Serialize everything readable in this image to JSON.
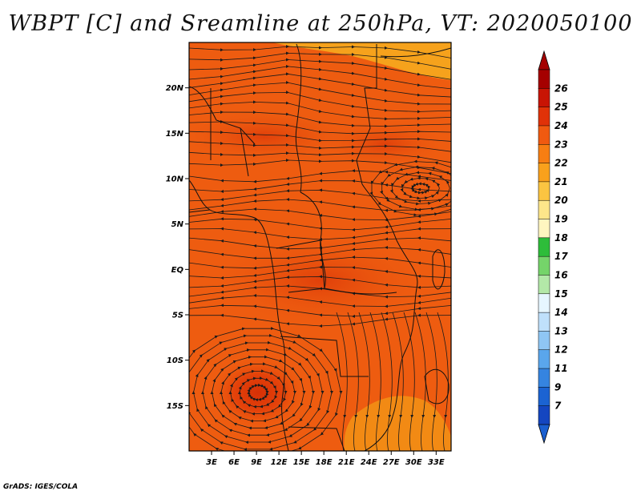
{
  "title": "WBPT [C] and Sreamline at 250hPa, VT: 2020050100",
  "credit": "GrADS: IGES/COLA",
  "map": {
    "lat_range": [
      -20,
      25
    ],
    "lon_range": [
      0,
      35
    ],
    "lat_ticks": [
      {
        "label": "20N",
        "lat": 20
      },
      {
        "label": "15N",
        "lat": 15
      },
      {
        "label": "10N",
        "lat": 10
      },
      {
        "label": "5N",
        "lat": 5
      },
      {
        "label": "EQ",
        "lat": 0
      },
      {
        "label": "5S",
        "lat": -5
      },
      {
        "label": "10S",
        "lat": -10
      },
      {
        "label": "15S",
        "lat": -15
      }
    ],
    "lon_ticks": [
      {
        "label": "3E",
        "lon": 3
      },
      {
        "label": "6E",
        "lon": 6
      },
      {
        "label": "9E",
        "lon": 9
      },
      {
        "label": "12E",
        "lon": 12
      },
      {
        "label": "15E",
        "lon": 15
      },
      {
        "label": "18E",
        "lon": 18
      },
      {
        "label": "21E",
        "lon": 21
      },
      {
        "label": "24E",
        "lon": 24
      },
      {
        "label": "27E",
        "lon": 27
      },
      {
        "label": "30E",
        "lon": 30
      },
      {
        "label": "33E",
        "lon": 33
      }
    ],
    "background_color": "#ee5c10",
    "field_colors": {
      "north_band": "#f6a21c",
      "warm_core": "#e2400a",
      "vortex_center": "#d63006",
      "southeast_patch": "#f28a14"
    }
  },
  "colorbar": {
    "labels": [
      "26",
      "25",
      "24",
      "23",
      "22",
      "21",
      "20",
      "19",
      "18",
      "17",
      "16",
      "15",
      "14",
      "13",
      "12",
      "11",
      "9",
      "7"
    ],
    "segment_colors": [
      "#a50000",
      "#c81404",
      "#e03208",
      "#f05a10",
      "#f77e12",
      "#f9a11c",
      "#fbc441",
      "#fde68a",
      "#fff6c0",
      "#2ebd3a",
      "#75d46a",
      "#b3e8a8",
      "#e6f6ff",
      "#bfe0fb",
      "#8fc6f4",
      "#5aa6ec",
      "#3584e0",
      "#1b63d2",
      "#1446c0"
    ],
    "top_arrow_color": "#a50000",
    "bottom_arrow_color": "#1a5fd0"
  }
}
